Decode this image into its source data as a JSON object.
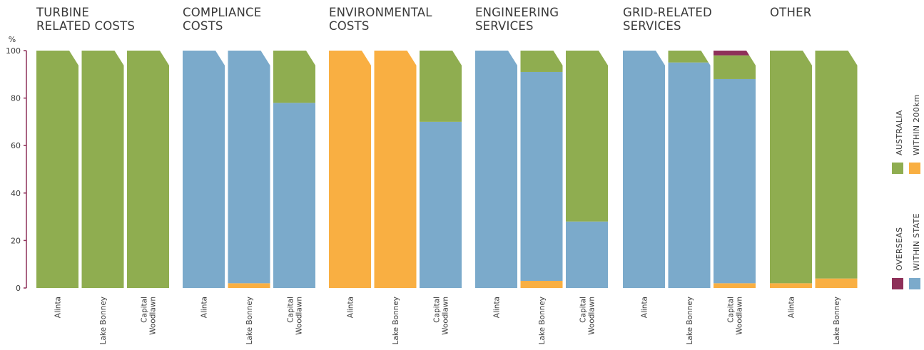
{
  "chart_data": {
    "type": "bar",
    "stacked": true,
    "ylabel": "%",
    "ylim": [
      0,
      100
    ],
    "yticks": [
      0,
      20,
      40,
      60,
      80,
      100
    ],
    "grid": false,
    "legend_position": "right",
    "series": [
      {
        "key": "within_state",
        "name": "WITHIN STATE",
        "color": "#7BAACB"
      },
      {
        "key": "within_200km",
        "name": "WITHIN 200km",
        "color": "#F9AF42"
      },
      {
        "key": "australia",
        "name": "AUSTRALIA",
        "color": "#8FAD50"
      },
      {
        "key": "overseas",
        "name": "OVERSEAS",
        "color": "#8E3059"
      }
    ],
    "stack_order": [
      "within_200km",
      "within_state",
      "australia",
      "overseas"
    ],
    "groups": [
      {
        "title": [
          "TURBINE",
          "RELATED COSTS"
        ],
        "bars": [
          {
            "label": [
              "Alinta"
            ],
            "values": {
              "within_200km": 0,
              "within_state": 0,
              "australia": 100,
              "overseas": 0
            }
          },
          {
            "label": [
              "Lake Bonney"
            ],
            "values": {
              "within_200km": 0,
              "within_state": 0,
              "australia": 100,
              "overseas": 0
            }
          },
          {
            "label": [
              "Capital",
              "Woodlawn"
            ],
            "values": {
              "within_200km": 0,
              "within_state": 0,
              "australia": 100,
              "overseas": 0
            }
          }
        ]
      },
      {
        "title": [
          "COMPLIANCE",
          "COSTS"
        ],
        "bars": [
          {
            "label": [
              "Alinta"
            ],
            "values": {
              "within_200km": 0,
              "within_state": 100,
              "australia": 0,
              "overseas": 0
            }
          },
          {
            "label": [
              "Lake Bonney"
            ],
            "values": {
              "within_200km": 2,
              "within_state": 98,
              "australia": 0,
              "overseas": 0
            }
          },
          {
            "label": [
              "Capital",
              "Woodlawn"
            ],
            "values": {
              "within_200km": 0,
              "within_state": 78,
              "australia": 22,
              "overseas": 0
            }
          }
        ]
      },
      {
        "title": [
          "ENVIRONMENTAL",
          "COSTS"
        ],
        "bars": [
          {
            "label": [
              "Alinta"
            ],
            "values": {
              "within_200km": 100,
              "within_state": 0,
              "australia": 0,
              "overseas": 0
            }
          },
          {
            "label": [
              "Lake Bonney"
            ],
            "values": {
              "within_200km": 100,
              "within_state": 0,
              "australia": 0,
              "overseas": 0
            }
          },
          {
            "label": [
              "Capital",
              "Woodlawn"
            ],
            "values": {
              "within_200km": 0,
              "within_state": 70,
              "australia": 30,
              "overseas": 0
            }
          }
        ]
      },
      {
        "title": [
          "ENGINEERING",
          "SERVICES"
        ],
        "bars": [
          {
            "label": [
              "Alinta"
            ],
            "values": {
              "within_200km": 0,
              "within_state": 100,
              "australia": 0,
              "overseas": 0
            }
          },
          {
            "label": [
              "Lake Bonney"
            ],
            "values": {
              "within_200km": 3,
              "within_state": 88,
              "australia": 9,
              "overseas": 0
            }
          },
          {
            "label": [
              "Capital",
              "Woodlawn"
            ],
            "values": {
              "within_200km": 0,
              "within_state": 28,
              "australia": 72,
              "overseas": 0
            }
          }
        ]
      },
      {
        "title": [
          "GRID-RELATED",
          "SERVICES"
        ],
        "bars": [
          {
            "label": [
              "Alinta"
            ],
            "values": {
              "within_200km": 0,
              "within_state": 100,
              "australia": 0,
              "overseas": 0
            }
          },
          {
            "label": [
              "Lake Bonney"
            ],
            "values": {
              "within_200km": 0,
              "within_state": 95,
              "australia": 5,
              "overseas": 0
            }
          },
          {
            "label": [
              "Capital",
              "Woodlawn"
            ],
            "values": {
              "within_200km": 2,
              "within_state": 86,
              "australia": 10,
              "overseas": 2
            }
          }
        ]
      },
      {
        "title": [
          "OTHER"
        ],
        "bars": [
          {
            "label": [
              "Alinta"
            ],
            "values": {
              "within_200km": 2,
              "within_state": 0,
              "australia": 98,
              "overseas": 0
            }
          },
          {
            "label": [
              "Lake Bonney"
            ],
            "values": {
              "within_200km": 4,
              "within_state": 0,
              "australia": 96,
              "overseas": 0
            }
          }
        ]
      }
    ]
  }
}
